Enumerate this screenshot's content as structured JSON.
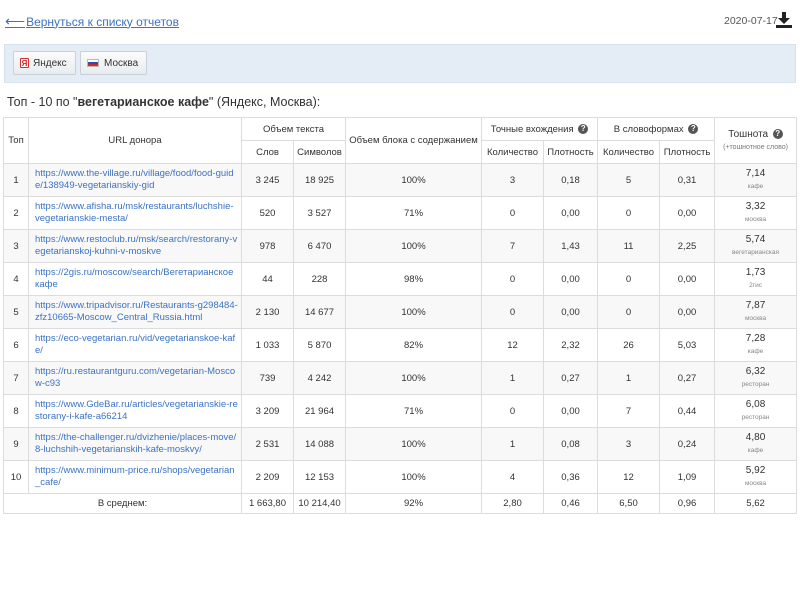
{
  "header": {
    "back_label": "Вернуться к списку отчетов",
    "date": "2020-07-17"
  },
  "filters": {
    "engine_label": "Яндекс",
    "region_label": "Москва"
  },
  "heading": {
    "prefix": "Топ - 10 по \"",
    "query": "вегетарианское кафе",
    "suffix": "\" (Яндекс, Москва):"
  },
  "table": {
    "headers": {
      "top": "Топ",
      "url": "URL донора",
      "text_volume": "Объем текста",
      "words": "Слов",
      "chars": "Символов",
      "block_volume": "Объем блока с содержанием",
      "exact": "Точные вхождения",
      "wordforms": "В словоформах",
      "count": "Количество",
      "density": "Плотность",
      "toxicity": "Тошнота",
      "toxicity_note": "(+тошнотное слово)"
    },
    "rows": [
      {
        "n": "1",
        "url": "https://www.the-village.ru/village/food/food-guide/138949-vegetarianskiy-gid",
        "words": "3 245",
        "chars": "18 925",
        "block": "100%",
        "exact_count": "3",
        "exact_density": "0,18",
        "wf_count": "5",
        "wf_density": "0,31",
        "tox": "7,14",
        "tox_word": "кафе"
      },
      {
        "n": "2",
        "url": "https://www.afisha.ru/msk/restaurants/luchshie-vegetarianskie-mesta/",
        "words": "520",
        "chars": "3 527",
        "block": "71%",
        "exact_count": "0",
        "exact_density": "0,00",
        "wf_count": "0",
        "wf_density": "0,00",
        "tox": "3,32",
        "tox_word": "москва"
      },
      {
        "n": "3",
        "url": "https://www.restoclub.ru/msk/search/restorany-vegetarianskoj-kuhni-v-moskve",
        "words": "978",
        "chars": "6 470",
        "block": "100%",
        "exact_count": "7",
        "exact_density": "1,43",
        "wf_count": "11",
        "wf_density": "2,25",
        "tox": "5,74",
        "tox_word": "вегетарианская"
      },
      {
        "n": "4",
        "url": "https://2gis.ru/moscow/search/Вегетарианское кафе",
        "words": "44",
        "chars": "228",
        "block": "98%",
        "exact_count": "0",
        "exact_density": "0,00",
        "wf_count": "0",
        "wf_density": "0,00",
        "tox": "1,73",
        "tox_word": "2гис"
      },
      {
        "n": "5",
        "url": "https://www.tripadvisor.ru/Restaurants-g298484-zfz10665-Moscow_Central_Russia.html",
        "words": "2 130",
        "chars": "14 677",
        "block": "100%",
        "exact_count": "0",
        "exact_density": "0,00",
        "wf_count": "0",
        "wf_density": "0,00",
        "tox": "7,87",
        "tox_word": "москва"
      },
      {
        "n": "6",
        "url": "https://eco-vegetarian.ru/vid/vegetarianskoe-kafe/",
        "words": "1 033",
        "chars": "5 870",
        "block": "82%",
        "exact_count": "12",
        "exact_density": "2,32",
        "wf_count": "26",
        "wf_density": "5,03",
        "tox": "7,28",
        "tox_word": "кафе"
      },
      {
        "n": "7",
        "url": "https://ru.restaurantguru.com/vegetarian-Moscow-c93",
        "words": "739",
        "chars": "4 242",
        "block": "100%",
        "exact_count": "1",
        "exact_density": "0,27",
        "wf_count": "1",
        "wf_density": "0,27",
        "tox": "6,32",
        "tox_word": "ресторан"
      },
      {
        "n": "8",
        "url": "https://www.GdeBar.ru/articles/vegetarianskie-restorany-i-kafe-a66214",
        "words": "3 209",
        "chars": "21 964",
        "block": "71%",
        "exact_count": "0",
        "exact_density": "0,00",
        "wf_count": "7",
        "wf_density": "0,44",
        "tox": "6,08",
        "tox_word": "ресторан"
      },
      {
        "n": "9",
        "url": "https://the-challenger.ru/dvizhenie/places-move/8-luchshih-vegetarianskih-kafe-moskvy/",
        "words": "2 531",
        "chars": "14 088",
        "block": "100%",
        "exact_count": "1",
        "exact_density": "0,08",
        "wf_count": "3",
        "wf_density": "0,24",
        "tox": "4,80",
        "tox_word": "кафе"
      },
      {
        "n": "10",
        "url": "https://www.minimum-price.ru/shops/vegetarian_cafe/",
        "words": "2 209",
        "chars": "12 153",
        "block": "100%",
        "exact_count": "4",
        "exact_density": "0,36",
        "wf_count": "12",
        "wf_density": "1,09",
        "tox": "5,92",
        "tox_word": "москва"
      }
    ],
    "footer": {
      "label": "В среднем:",
      "words": "1 663,80",
      "chars": "10 214,40",
      "block": "92%",
      "exact_count": "2,80",
      "exact_density": "0,46",
      "wf_count": "6,50",
      "wf_density": "0,96",
      "tox": "5,62"
    }
  },
  "colors": {
    "link": "#3b72c4",
    "filterbar": "#e4edf6"
  },
  "icons": {
    "back": "arrow-left-icon",
    "download": "download-icon",
    "yandex": "yandex-logo-icon",
    "flag": "russia-flag-icon",
    "help": "question-circle-icon"
  }
}
